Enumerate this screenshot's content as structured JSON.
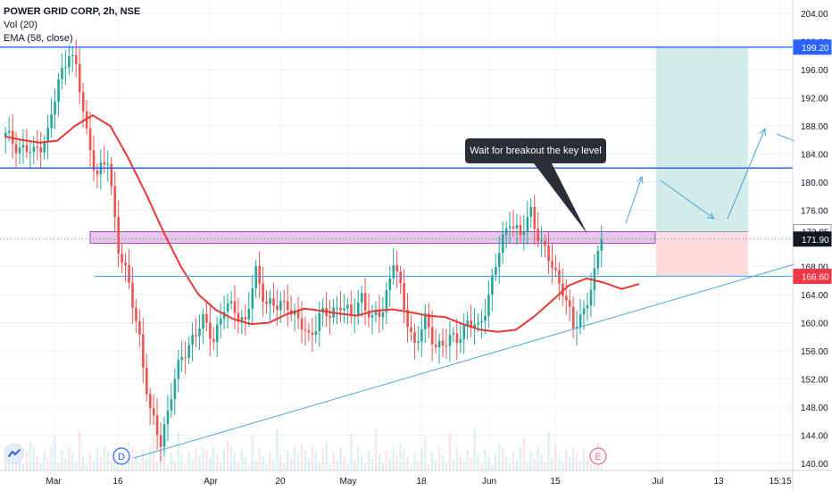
{
  "header": {
    "symbol_line": "POWER GRID CORP, 2h, NSE",
    "volume_indicator": "Vol (20)",
    "ema_indicator": "EMA (58, close)"
  },
  "annotation": {
    "callout_text": "Wait for breakout the key level"
  },
  "markers": {
    "dividend": "D",
    "earnings": "E"
  },
  "colors": {
    "up": "#26a69a",
    "down": "#ef5350",
    "ema": "#e53935",
    "lines": "#2962ff",
    "trendline": "#4aa3df",
    "zone": "#e1bee7",
    "target_zone": "#b2dfdb",
    "stop_zone": "#ffcdd2",
    "price_tag_blue": "#2962ff",
    "price_tag_red": "#f23645"
  },
  "chart_data": {
    "type": "candlestick",
    "y_axis": {
      "ticks": [
        "204.00",
        "200.00",
        "196.00",
        "192.00",
        "188.00",
        "184.00",
        "180.00",
        "176.00",
        "172.00",
        "168.00",
        "164.00",
        "160.00",
        "156.00",
        "152.00",
        "148.00",
        "144.00",
        "140.00"
      ],
      "range": [
        139.5,
        206.5
      ]
    },
    "x_axis": {
      "ticks": [
        "Mar",
        "16",
        "Apr",
        "20",
        "May",
        "18",
        "Jun",
        "15",
        "Jul",
        "13",
        "15:15"
      ]
    },
    "price_labels": [
      {
        "label": "199.20",
        "value": 199.2,
        "style": "blue"
      },
      {
        "label": "172.95",
        "value": 172.95,
        "style": "gray"
      },
      {
        "label": "171.90",
        "value": 171.9,
        "style": "dark"
      },
      {
        "label": "166.60",
        "value": 166.6,
        "style": "red"
      }
    ],
    "horizontal_levels": [
      199.2,
      182.0,
      166.6
    ],
    "key_zone": [
      171.3,
      172.95
    ],
    "position_tool": {
      "entry": 172.95,
      "target": 199.2,
      "stop": 166.6
    },
    "ema_58": [
      [
        0,
        186.5
      ],
      [
        5,
        186.0
      ],
      [
        10,
        185.6
      ],
      [
        15,
        185.9
      ],
      [
        20,
        188.0
      ],
      [
        25,
        189.5
      ],
      [
        30,
        188.0
      ],
      [
        35,
        183.5
      ],
      [
        40,
        178.5
      ],
      [
        45,
        173.0
      ],
      [
        50,
        168.0
      ],
      [
        55,
        164.0
      ],
      [
        60,
        161.8
      ],
      [
        65,
        160.5
      ],
      [
        70,
        159.8
      ],
      [
        75,
        160.0
      ],
      [
        80,
        161.2
      ],
      [
        85,
        162.0
      ],
      [
        90,
        161.7
      ],
      [
        95,
        161.3
      ],
      [
        100,
        161.0
      ],
      [
        105,
        161.7
      ],
      [
        110,
        161.9
      ],
      [
        115,
        161.5
      ],
      [
        120,
        161.0
      ],
      [
        125,
        160.8
      ],
      [
        130,
        159.8
      ],
      [
        135,
        159.0
      ],
      [
        140,
        158.7
      ],
      [
        145,
        159.0
      ],
      [
        150,
        160.8
      ],
      [
        155,
        163.0
      ],
      [
        160,
        165.3
      ],
      [
        165,
        166.3
      ],
      [
        170,
        165.7
      ],
      [
        175,
        164.8
      ],
      [
        180,
        165.5
      ]
    ],
    "candles_close_path": [
      [
        0,
        186.5
      ],
      [
        4,
        185.0
      ],
      [
        8,
        184.0
      ],
      [
        12,
        187.0
      ],
      [
        15,
        194.0
      ],
      [
        18,
        199.0
      ],
      [
        20,
        196.0
      ],
      [
        23,
        187.0
      ],
      [
        26,
        181.0
      ],
      [
        29,
        183.0
      ],
      [
        32,
        171.0
      ],
      [
        35,
        165.0
      ],
      [
        38,
        158.0
      ],
      [
        41,
        147.0
      ],
      [
        44,
        143.0
      ],
      [
        47,
        150.0
      ],
      [
        50,
        155.0
      ],
      [
        53,
        158.0
      ],
      [
        56,
        160.0
      ],
      [
        59,
        158.0
      ],
      [
        62,
        162.0
      ],
      [
        65,
        162.0
      ],
      [
        68,
        160.0
      ],
      [
        71,
        167.0
      ],
      [
        74,
        163.0
      ],
      [
        77,
        162.0
      ],
      [
        80,
        163.0
      ],
      [
        83,
        160.0
      ],
      [
        86,
        158.0
      ],
      [
        89,
        161.0
      ],
      [
        92,
        161.0
      ],
      [
        95,
        163.0
      ],
      [
        98,
        160.5
      ],
      [
        101,
        164.0
      ],
      [
        104,
        160.0
      ],
      [
        107,
        162.0
      ],
      [
        110,
        169.0
      ],
      [
        113,
        162.0
      ],
      [
        116,
        157.0
      ],
      [
        119,
        160.0
      ],
      [
        122,
        157.0
      ],
      [
        125,
        157.0
      ],
      [
        128,
        158.0
      ],
      [
        131,
        160.0
      ],
      [
        134,
        159.0
      ],
      [
        137,
        164.0
      ],
      [
        140,
        170.0
      ],
      [
        143,
        175.0
      ],
      [
        146,
        172.0
      ],
      [
        149,
        176.0
      ],
      [
        152,
        171.0
      ],
      [
        155,
        168.0
      ],
      [
        158,
        165.0
      ],
      [
        161,
        159.0
      ],
      [
        164,
        162.0
      ],
      [
        167,
        166.5
      ],
      [
        169,
        172.5
      ]
    ]
  }
}
